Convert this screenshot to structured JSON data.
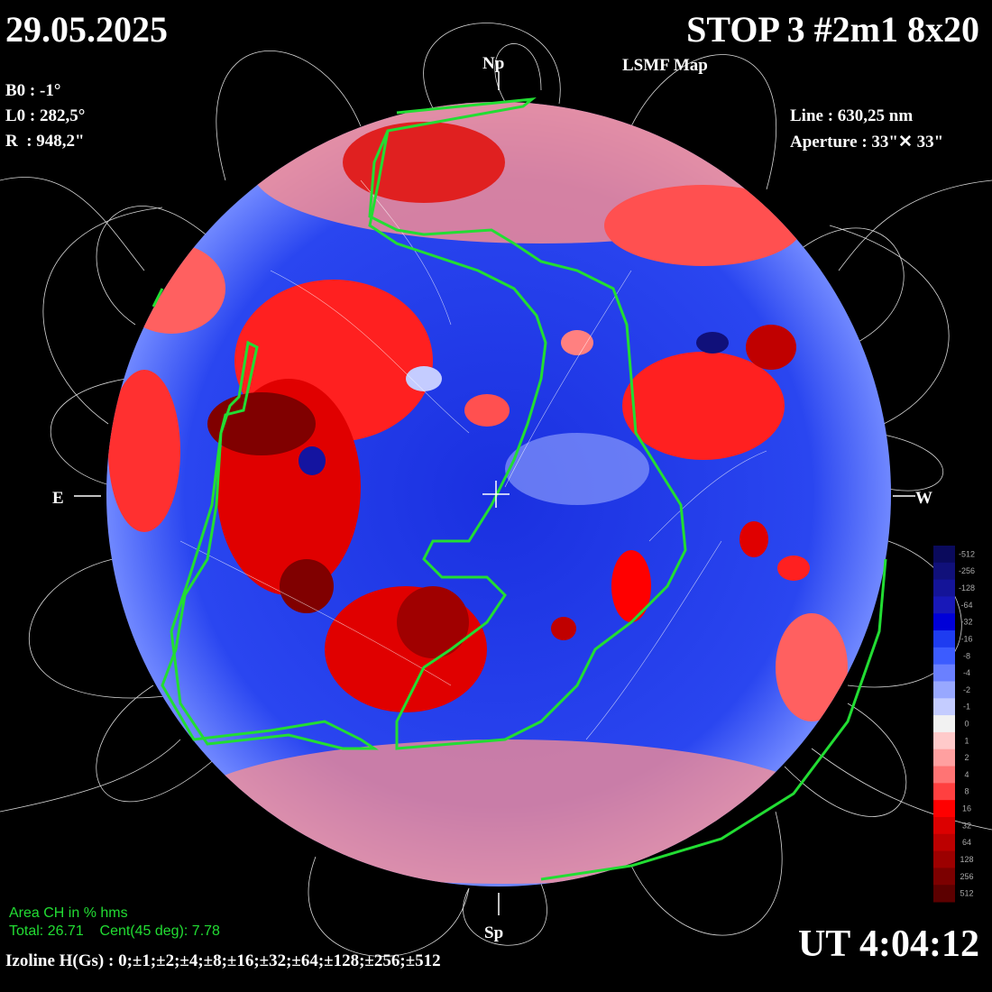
{
  "header": {
    "date": "29.05.2025",
    "title": "STOP 3 #2m1 8x20",
    "subtitle": "LSMF  Map"
  },
  "parameters": {
    "b0": "B0 : -1°",
    "l0": "L0 : 282,5°",
    "r": "R  : 948,2\"",
    "line": "Line : 630,25 nm",
    "aperture": "Aperture : 33\"✕ 33\""
  },
  "orientation": {
    "north": "Np",
    "south": "Sp",
    "east": "E",
    "west": "W"
  },
  "coronal_hole_area": {
    "title": "Area CH in % hms",
    "values": "Total: 26.71    Cent(45 deg): 7.78"
  },
  "time": "UT 4:04:12",
  "izoline": "Izoline H(Gs) : 0;±1;±2;±4;±8;±16;±32;±64;±128;±256;±512",
  "colorbar": {
    "levels": [
      -512,
      -256,
      -128,
      -64,
      -32,
      -16,
      -8,
      -4,
      -2,
      -1,
      0,
      1,
      2,
      4,
      8,
      16,
      32,
      64,
      128,
      256,
      512
    ],
    "colors": [
      "#0a0a5c",
      "#10107a",
      "#141498",
      "#1818b8",
      "#0000d8",
      "#1e3cf0",
      "#3c5cff",
      "#6a80ff",
      "#98a8ff",
      "#c4ccff",
      "#f2f2f2",
      "#ffcaca",
      "#ffa0a0",
      "#ff7474",
      "#ff4040",
      "#ff0000",
      "#dc0000",
      "#bc0000",
      "#9c0000",
      "#7c0000",
      "#5c0000"
    ]
  }
}
